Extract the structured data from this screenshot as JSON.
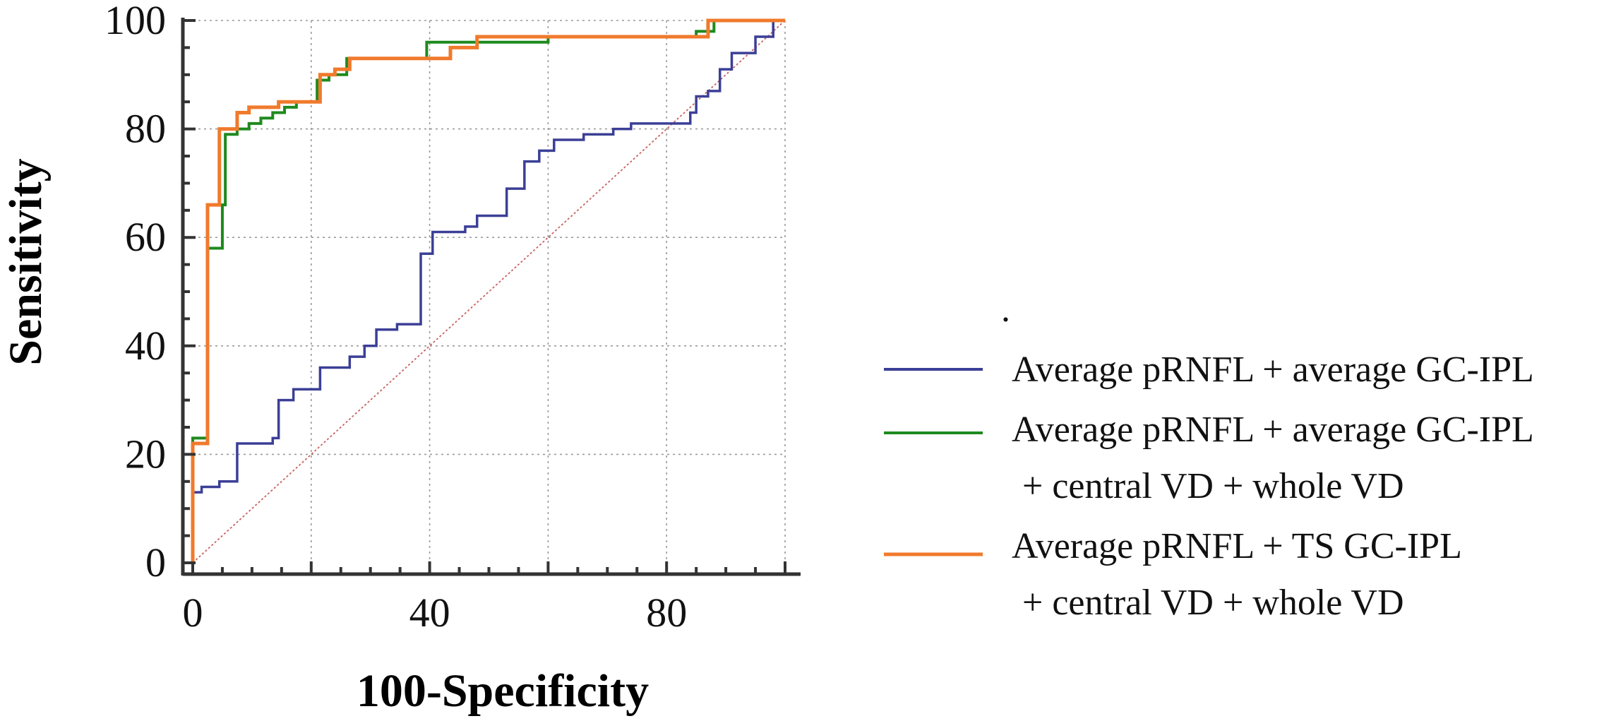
{
  "chart_data": {
    "type": "line",
    "title": "",
    "xlabel": "100-Specificity",
    "ylabel": "Sensitivity",
    "xlim": [
      0,
      100
    ],
    "ylim": [
      0,
      100
    ],
    "xticks": [
      "0",
      "40",
      "80"
    ],
    "xtick_values": [
      0,
      40,
      80
    ],
    "yticks": [
      "0",
      "20",
      "40",
      "60",
      "80",
      "100"
    ],
    "ytick_values": [
      0,
      20,
      40,
      60,
      80,
      100
    ],
    "grid": true,
    "legend_position": "right",
    "series": [
      {
        "name": "Average pRNFL + average GC-IPL",
        "color": "#3b3f96",
        "points": [
          [
            0,
            0
          ],
          [
            0,
            13
          ],
          [
            1.5,
            13
          ],
          [
            1.5,
            14
          ],
          [
            4.5,
            14
          ],
          [
            4.5,
            15
          ],
          [
            7.5,
            15
          ],
          [
            7.5,
            22
          ],
          [
            13.5,
            22
          ],
          [
            13.5,
            23
          ],
          [
            14.5,
            23
          ],
          [
            14.5,
            30
          ],
          [
            17,
            30
          ],
          [
            17,
            32
          ],
          [
            21.5,
            32
          ],
          [
            21.5,
            36
          ],
          [
            26.5,
            36
          ],
          [
            26.5,
            38
          ],
          [
            29,
            38
          ],
          [
            29,
            40
          ],
          [
            31,
            40
          ],
          [
            31,
            43
          ],
          [
            34.5,
            43
          ],
          [
            34.5,
            44
          ],
          [
            38.5,
            44
          ],
          [
            38.5,
            57
          ],
          [
            40.5,
            57
          ],
          [
            40.5,
            61
          ],
          [
            46,
            61
          ],
          [
            46,
            62
          ],
          [
            48,
            62
          ],
          [
            48,
            64
          ],
          [
            53,
            64
          ],
          [
            53,
            69
          ],
          [
            56,
            69
          ],
          [
            56,
            74
          ],
          [
            58.5,
            74
          ],
          [
            58.5,
            76
          ],
          [
            61,
            76
          ],
          [
            61,
            78
          ],
          [
            66,
            78
          ],
          [
            66,
            79
          ],
          [
            71,
            79
          ],
          [
            71,
            80
          ],
          [
            74,
            80
          ],
          [
            74,
            81
          ],
          [
            84,
            81
          ],
          [
            84,
            83
          ],
          [
            85,
            83
          ],
          [
            85,
            86
          ],
          [
            87,
            86
          ],
          [
            87,
            87
          ],
          [
            89,
            87
          ],
          [
            89,
            91
          ],
          [
            91,
            91
          ],
          [
            91,
            94
          ],
          [
            95,
            94
          ],
          [
            95,
            97
          ],
          [
            98,
            97
          ],
          [
            98,
            100
          ],
          [
            100,
            100
          ]
        ]
      },
      {
        "name": "Average pRNFL + average GC-IPL + central VD + whole VD",
        "color": "#1e8a1e",
        "points": [
          [
            0,
            0
          ],
          [
            0,
            23
          ],
          [
            2.5,
            23
          ],
          [
            2.5,
            58
          ],
          [
            5,
            58
          ],
          [
            5,
            66
          ],
          [
            5.5,
            66
          ],
          [
            5.5,
            79
          ],
          [
            7.5,
            79
          ],
          [
            7.5,
            80
          ],
          [
            9.5,
            80
          ],
          [
            9.5,
            81
          ],
          [
            11.5,
            81
          ],
          [
            11.5,
            82
          ],
          [
            13.5,
            82
          ],
          [
            13.5,
            83
          ],
          [
            15.5,
            83
          ],
          [
            15.5,
            84
          ],
          [
            17.5,
            84
          ],
          [
            17.5,
            85
          ],
          [
            21,
            85
          ],
          [
            21,
            89
          ],
          [
            23,
            89
          ],
          [
            23,
            90
          ],
          [
            26,
            90
          ],
          [
            26,
            93
          ],
          [
            39.5,
            93
          ],
          [
            39.5,
            96
          ],
          [
            60,
            96
          ],
          [
            60,
            97
          ],
          [
            85,
            97
          ],
          [
            85,
            98
          ],
          [
            88,
            98
          ],
          [
            88,
            100
          ],
          [
            100,
            100
          ]
        ]
      },
      {
        "name": "Average pRNFL + TS GC-IPL + central VD + whole VD",
        "color": "#f07a2c",
        "points": [
          [
            0,
            0
          ],
          [
            0,
            22
          ],
          [
            2.5,
            22
          ],
          [
            2.5,
            66
          ],
          [
            4.5,
            66
          ],
          [
            4.5,
            80
          ],
          [
            7.5,
            80
          ],
          [
            7.5,
            83
          ],
          [
            9.5,
            83
          ],
          [
            9.5,
            84
          ],
          [
            14.5,
            84
          ],
          [
            14.5,
            85
          ],
          [
            21.5,
            85
          ],
          [
            21.5,
            90
          ],
          [
            24,
            90
          ],
          [
            24,
            91
          ],
          [
            26.5,
            91
          ],
          [
            26.5,
            93
          ],
          [
            43.5,
            93
          ],
          [
            43.5,
            95
          ],
          [
            48,
            95
          ],
          [
            48,
            97
          ],
          [
            87,
            97
          ],
          [
            87,
            100
          ],
          [
            100,
            100
          ]
        ]
      }
    ],
    "reference_line": {
      "name": "diagonal reference",
      "color": "#c86262",
      "points": [
        [
          0,
          0
        ],
        [
          100,
          100
        ]
      ]
    }
  },
  "legend": {
    "dot": ".",
    "items": [
      {
        "line1": "Average pRNFL + average GC-IPL",
        "line2": ""
      },
      {
        "line1": "Average pRNFL + average GC-IPL",
        "line2": "+ central VD + whole VD"
      },
      {
        "line1": "Average pRNFL + TS GC-IPL",
        "line2": "+ central VD + whole VD"
      }
    ]
  }
}
